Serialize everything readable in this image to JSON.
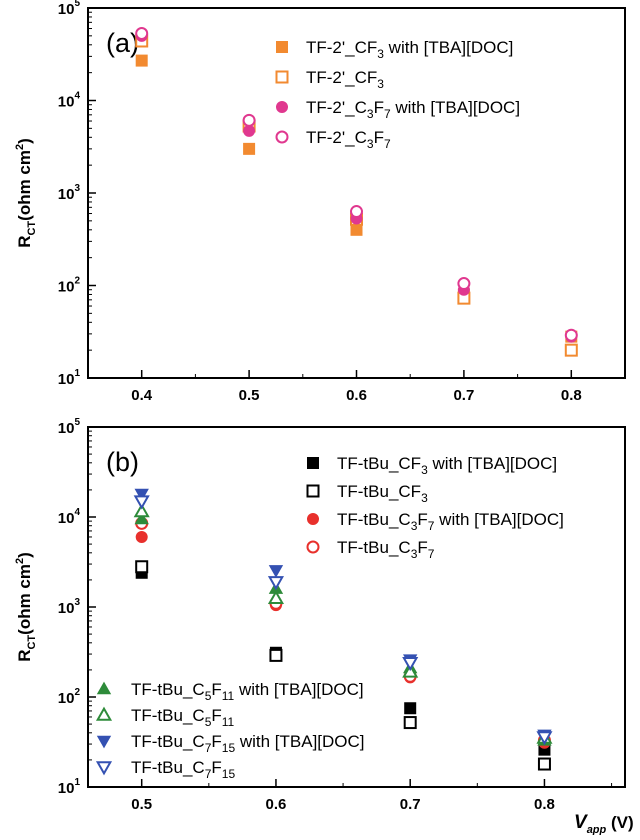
{
  "chart_data": [
    {
      "type": "scatter",
      "panel_label": "(a)",
      "ylabel": {
        "main": "R",
        "sub": "CT",
        "rest": "(ohm cm",
        "sup": "2",
        "end": ")"
      },
      "xlabel": "",
      "y_scale": "log",
      "xlim": [
        0.35,
        0.85
      ],
      "ylim": [
        10,
        100000
      ],
      "x_ticks": [
        "0.4",
        "0.5",
        "0.6",
        "0.7",
        "0.8"
      ],
      "y_ticks": [
        {
          "base": "10",
          "exp": "1"
        },
        {
          "base": "10",
          "exp": "2"
        },
        {
          "base": "10",
          "exp": "3"
        },
        {
          "base": "10",
          "exp": "4"
        },
        {
          "base": "10",
          "exp": "5"
        }
      ],
      "grid": false,
      "legend_position": "top-right",
      "series": [
        {
          "name": "TF-2'_CF3 with [TBA][DOC]",
          "label": {
            "pre": "TF-2'_CF",
            "sub": "3",
            "post": " with [TBA][DOC]"
          },
          "marker": "square",
          "filled": true,
          "color": "#f28a30",
          "x": [
            0.4,
            0.5,
            0.6,
            0.7,
            0.8
          ],
          "y": [
            27000,
            3000,
            400,
            80,
            28
          ]
        },
        {
          "name": "TF-2'_CF3",
          "label": {
            "pre": "TF-2'_CF",
            "sub": "3",
            "post": ""
          },
          "marker": "square",
          "filled": false,
          "color": "#f28a30",
          "x": [
            0.4,
            0.5,
            0.6,
            0.7,
            0.8
          ],
          "y": [
            44000,
            5300,
            520,
            73,
            20
          ]
        },
        {
          "name": "TF-2'_C3F7 with [TBA][DOC]",
          "label": {
            "pre": "TF-2'_C",
            "sub": "3",
            "mid": "F",
            "sub2": "7",
            "post": " with [TBA][DOC]"
          },
          "marker": "circle",
          "filled": true,
          "color": "#e0388f",
          "x": [
            0.4,
            0.5,
            0.6,
            0.7,
            0.8
          ],
          "y": [
            50000,
            4700,
            530,
            90,
            28
          ]
        },
        {
          "name": "TF-2'_C3F7",
          "label": {
            "pre": "TF-2'_C",
            "sub": "3",
            "mid": "F",
            "sub2": "7",
            "post": ""
          },
          "marker": "circle",
          "filled": false,
          "color": "#e0388f",
          "x": [
            0.4,
            0.5,
            0.6,
            0.7,
            0.8
          ],
          "y": [
            53000,
            6100,
            630,
            105,
            29
          ]
        }
      ]
    },
    {
      "type": "scatter",
      "panel_label": "(b)",
      "ylabel": {
        "main": "R",
        "sub": "CT",
        "rest": "(ohm cm",
        "sup": "2",
        "end": ")"
      },
      "xlabel": {
        "main": "V",
        "sub": "app",
        "rest": " (V)"
      },
      "y_scale": "log",
      "xlim": [
        0.46,
        0.86
      ],
      "ylim": [
        10,
        100000
      ],
      "x_ticks": [
        "0.5",
        "0.6",
        "0.7",
        "0.8"
      ],
      "y_ticks": [
        {
          "base": "10",
          "exp": "1"
        },
        {
          "base": "10",
          "exp": "2"
        },
        {
          "base": "10",
          "exp": "3"
        },
        {
          "base": "10",
          "exp": "4"
        },
        {
          "base": "10",
          "exp": "5"
        }
      ],
      "grid": false,
      "legend_position": "top-right and bottom-left",
      "series": [
        {
          "name": "TF-tBu_CF3 with [TBA][DOC]",
          "label": {
            "pre": "TF-tBu_CF",
            "sub": "3",
            "post": " with [TBA][DOC]"
          },
          "legend_group": "top",
          "marker": "square",
          "filled": true,
          "color": "#000000",
          "x": [
            0.5,
            0.6,
            0.7,
            0.8
          ],
          "y": [
            2400,
            310,
            75,
            26
          ]
        },
        {
          "name": "TF-tBu_CF3",
          "label": {
            "pre": "TF-tBu_CF",
            "sub": "3",
            "post": ""
          },
          "legend_group": "top",
          "marker": "square",
          "filled": false,
          "color": "#000000",
          "x": [
            0.5,
            0.6,
            0.7,
            0.8
          ],
          "y": [
            2800,
            290,
            52,
            18
          ]
        },
        {
          "name": "TF-tBu_C3F7 with [TBA][DOC]",
          "label": {
            "pre": "TF-tBu_C",
            "sub": "3",
            "mid": "F",
            "sub2": "7",
            "post": " with [TBA][DOC]"
          },
          "legend_group": "top",
          "marker": "circle",
          "filled": true,
          "color": "#e8302c",
          "x": [
            0.5,
            0.6,
            0.7,
            0.8
          ],
          "y": [
            6000,
            1050,
            165,
            31
          ]
        },
        {
          "name": "TF-tBu_C3F7",
          "label": {
            "pre": "TF-tBu_C",
            "sub": "3",
            "mid": "F",
            "sub2": "7",
            "post": ""
          },
          "legend_group": "top",
          "marker": "circle",
          "filled": false,
          "color": "#e8302c",
          "x": [
            0.5,
            0.6,
            0.7,
            0.8
          ],
          "y": [
            8500,
            1100,
            170,
            33
          ]
        },
        {
          "name": "TF-tBu_C5F11 with [TBA][DOC]",
          "label": {
            "pre": "TF-tBu_C",
            "sub": "5",
            "mid": "F",
            "sub2": "11",
            "post": " with [TBA][DOC]"
          },
          "legend_group": "bottom",
          "marker": "triangle-up",
          "filled": true,
          "color": "#2e8b3a",
          "x": [
            0.5,
            0.6,
            0.7,
            0.8
          ],
          "y": [
            9500,
            1600,
            210,
            33
          ]
        },
        {
          "name": "TF-tBu_C5F11",
          "label": {
            "pre": "TF-tBu_C",
            "sub": "5",
            "mid": "F",
            "sub2": "11",
            "post": ""
          },
          "legend_group": "bottom",
          "marker": "triangle-up",
          "filled": false,
          "color": "#2e8b3a",
          "x": [
            0.5,
            0.6,
            0.7,
            0.8
          ],
          "y": [
            11500,
            1250,
            190,
            35
          ]
        },
        {
          "name": "TF-tBu_C7F15 with [TBA][DOC]",
          "label": {
            "pre": "TF-tBu_C",
            "sub": "7",
            "mid": "F",
            "sub2": "15",
            "post": " with [TBA][DOC]"
          },
          "legend_group": "bottom",
          "marker": "triangle-down",
          "filled": true,
          "color": "#3451b2",
          "x": [
            0.5,
            0.6,
            0.7,
            0.8
          ],
          "y": [
            18000,
            2550,
            260,
            38
          ]
        },
        {
          "name": "TF-tBu_C7F15",
          "label": {
            "pre": "TF-tBu_C",
            "sub": "7",
            "mid": "F",
            "sub2": "15",
            "post": ""
          },
          "legend_group": "bottom",
          "marker": "triangle-down",
          "filled": false,
          "color": "#3451b2",
          "x": [
            0.5,
            0.6,
            0.7,
            0.8
          ],
          "y": [
            15000,
            1900,
            240,
            36
          ]
        }
      ]
    }
  ]
}
